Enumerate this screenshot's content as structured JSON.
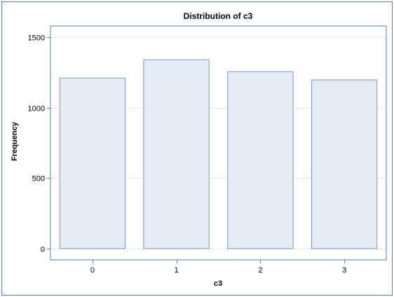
{
  "chart_data": {
    "type": "bar",
    "title": "Distribution of c3",
    "xlabel": "c3",
    "ylabel": "Frequency",
    "categories": [
      "0",
      "1",
      "2",
      "3"
    ],
    "values": [
      1210,
      1340,
      1255,
      1197
    ],
    "ylim": [
      -80,
      1580
    ],
    "yticks": [
      0,
      500,
      1000,
      1500
    ],
    "grid": true,
    "legend": "none",
    "colors": {
      "bar_fill": "#e3eaf3",
      "bar_stroke": "#7f9ab8",
      "axis": "#5b7fae",
      "grid": "#e6e6e6",
      "frame": "#5b7fae"
    }
  }
}
